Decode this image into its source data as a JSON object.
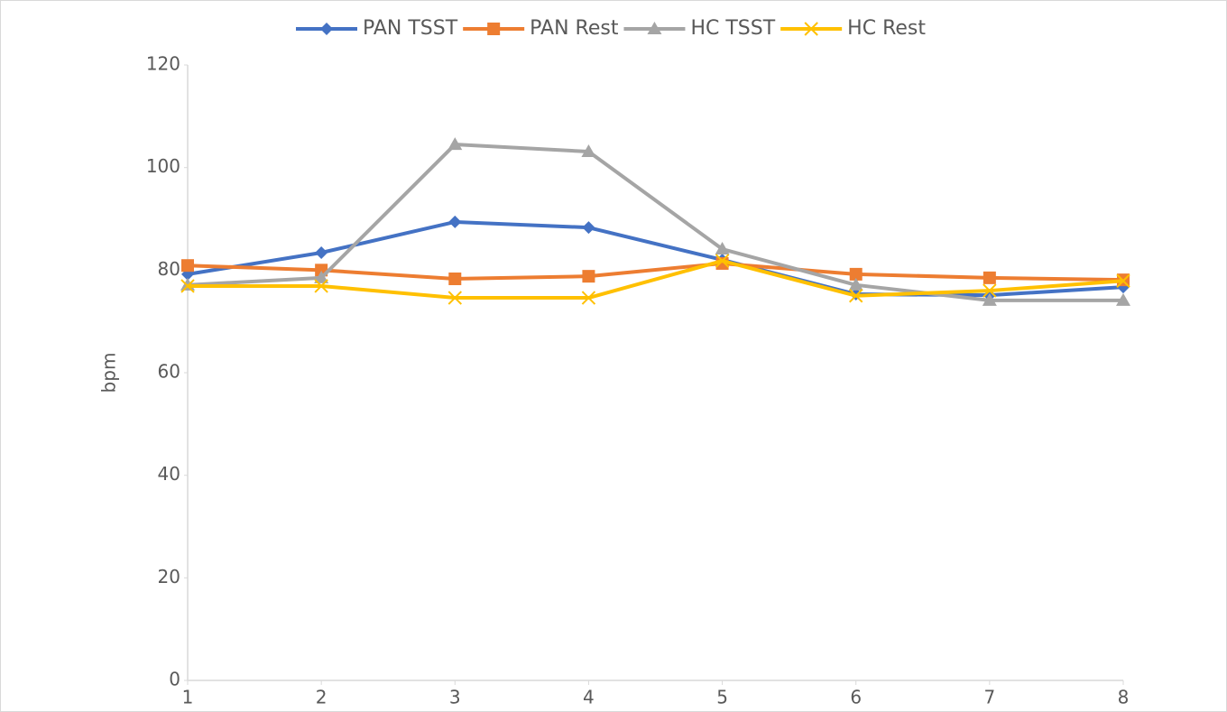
{
  "chart_data": {
    "type": "line",
    "y_label": "bpm",
    "x": [
      1,
      2,
      3,
      4,
      5,
      6,
      7,
      8
    ],
    "xlim": [
      1,
      8
    ],
    "xticks": [
      1,
      2,
      3,
      4,
      5,
      6,
      7,
      8
    ],
    "ylim": [
      0,
      120
    ],
    "yticks": [
      0,
      20,
      40,
      60,
      80,
      100,
      120
    ],
    "grid": false,
    "legend": "top",
    "series": [
      {
        "name": "PAN TSST",
        "color": "#4472c4",
        "marker": "diamond",
        "values": [
          79.2,
          83.4,
          89.4,
          88.3,
          82,
          75.3,
          75.1,
          76.7
        ]
      },
      {
        "name": "PAN Rest",
        "color": "#ed7d31",
        "marker": "square",
        "values": [
          80.9,
          80,
          78.3,
          78.8,
          81.3,
          79.2,
          78.5,
          78.1
        ]
      },
      {
        "name": "HC TSST",
        "color": "#a5a5a5",
        "marker": "triangle",
        "values": [
          77.1,
          78.5,
          104.5,
          103.1,
          84.1,
          77.1,
          74.1,
          74.1
        ]
      },
      {
        "name": "HC Rest",
        "color": "#ffc000",
        "marker": "x",
        "values": [
          76.9,
          76.9,
          74.6,
          74.6,
          81.8,
          75,
          76,
          77.9
        ]
      }
    ]
  }
}
